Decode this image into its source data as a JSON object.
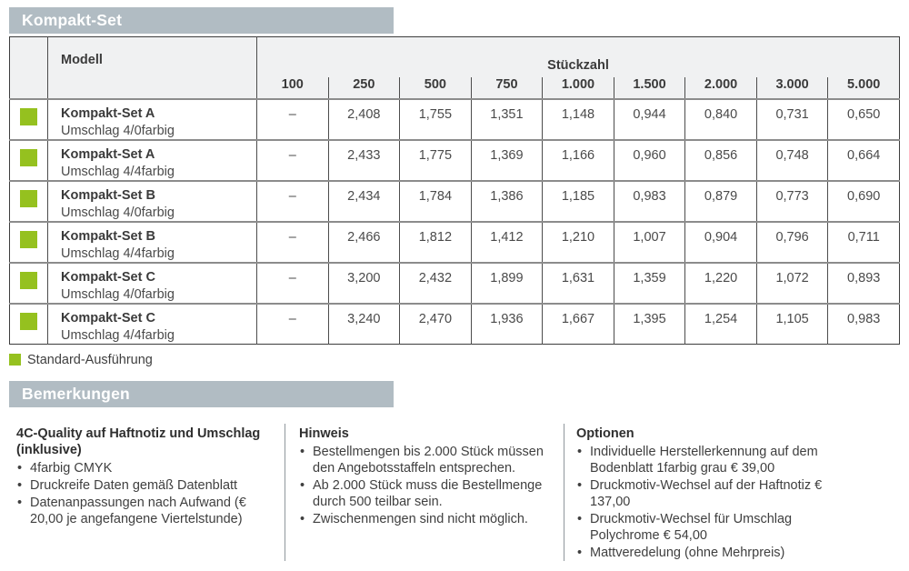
{
  "colors": {
    "accent_green": "#95C11F",
    "section_bar_gray": "#B1BCC3",
    "table_header_bg": "#F0F1F2",
    "border_dark": "#4C4C4C",
    "row_divider_gray": "#8C8C8C",
    "text": "#3C3C3C"
  },
  "section_top": {
    "title": "Kompakt-Set"
  },
  "table": {
    "col_model_header": "Modell",
    "col_quantity_header": "Stückzahl",
    "quantities": [
      "100",
      "250",
      "500",
      "750",
      "1.000",
      "1.500",
      "2.000",
      "3.000",
      "5.000"
    ],
    "rows": [
      {
        "name": "Kompakt-Set A",
        "subtitle": "Umschlag 4/0farbig",
        "standard": true,
        "values": [
          "–",
          "2,408",
          "1,755",
          "1,351",
          "1,148",
          "0,944",
          "0,840",
          "0,731",
          "0,650"
        ]
      },
      {
        "name": "Kompakt-Set A",
        "subtitle": "Umschlag 4/4farbig",
        "standard": true,
        "values": [
          "–",
          "2,433",
          "1,775",
          "1,369",
          "1,166",
          "0,960",
          "0,856",
          "0,748",
          "0,664"
        ]
      },
      {
        "name": "Kompakt-Set B",
        "subtitle": "Umschlag 4/0farbig",
        "standard": true,
        "values": [
          "–",
          "2,434",
          "1,784",
          "1,386",
          "1,185",
          "0,983",
          "0,879",
          "0,773",
          "0,690"
        ]
      },
      {
        "name": "Kompakt-Set B",
        "subtitle": "Umschlag 4/4farbig",
        "standard": true,
        "values": [
          "–",
          "2,466",
          "1,812",
          "1,412",
          "1,210",
          "1,007",
          "0,904",
          "0,796",
          "0,711"
        ]
      },
      {
        "name": "Kompakt-Set C",
        "subtitle": "Umschlag 4/0farbig",
        "standard": true,
        "values": [
          "–",
          "3,200",
          "2,432",
          "1,899",
          "1,631",
          "1,359",
          "1,220",
          "1,072",
          "0,893"
        ]
      },
      {
        "name": "Kompakt-Set C",
        "subtitle": "Umschlag 4/4farbig",
        "standard": true,
        "values": [
          "–",
          "3,240",
          "2,470",
          "1,936",
          "1,667",
          "1,395",
          "1,254",
          "1,105",
          "0,983"
        ]
      }
    ]
  },
  "legend": {
    "label": "Standard-Ausführung"
  },
  "section_mid": {
    "title": "Bemerkungen"
  },
  "notes": {
    "columns": [
      {
        "title": "4C-Quality auf Haftnotiz und Umschlag (inklusive)",
        "items": [
          "4farbig CMYK",
          "Druckreife Daten gemäß Datenblatt",
          "Datenanpassungen nach Aufwand (€ 20,00 je angefangene Viertelstunde)"
        ]
      },
      {
        "title": "Hinweis",
        "items": [
          "Bestellmengen bis 2.000 Stück müssen den Angebotsstaffeln entsprechen.",
          "Ab 2.000 Stück muss die Bestellmenge durch 500 teilbar sein.",
          "Zwischenmengen sind nicht möglich."
        ]
      },
      {
        "title": "Optionen",
        "items": [
          "Individuelle Herstellerkennung auf dem Bodenblatt 1farbig grau € 39,00",
          "Druckmotiv-Wechsel auf der Haftnotiz € 137,00",
          "Druckmotiv-Wechsel für Umschlag Polychrome € 54,00",
          "Mattveredelung (ohne Mehrpreis)"
        ]
      }
    ]
  }
}
